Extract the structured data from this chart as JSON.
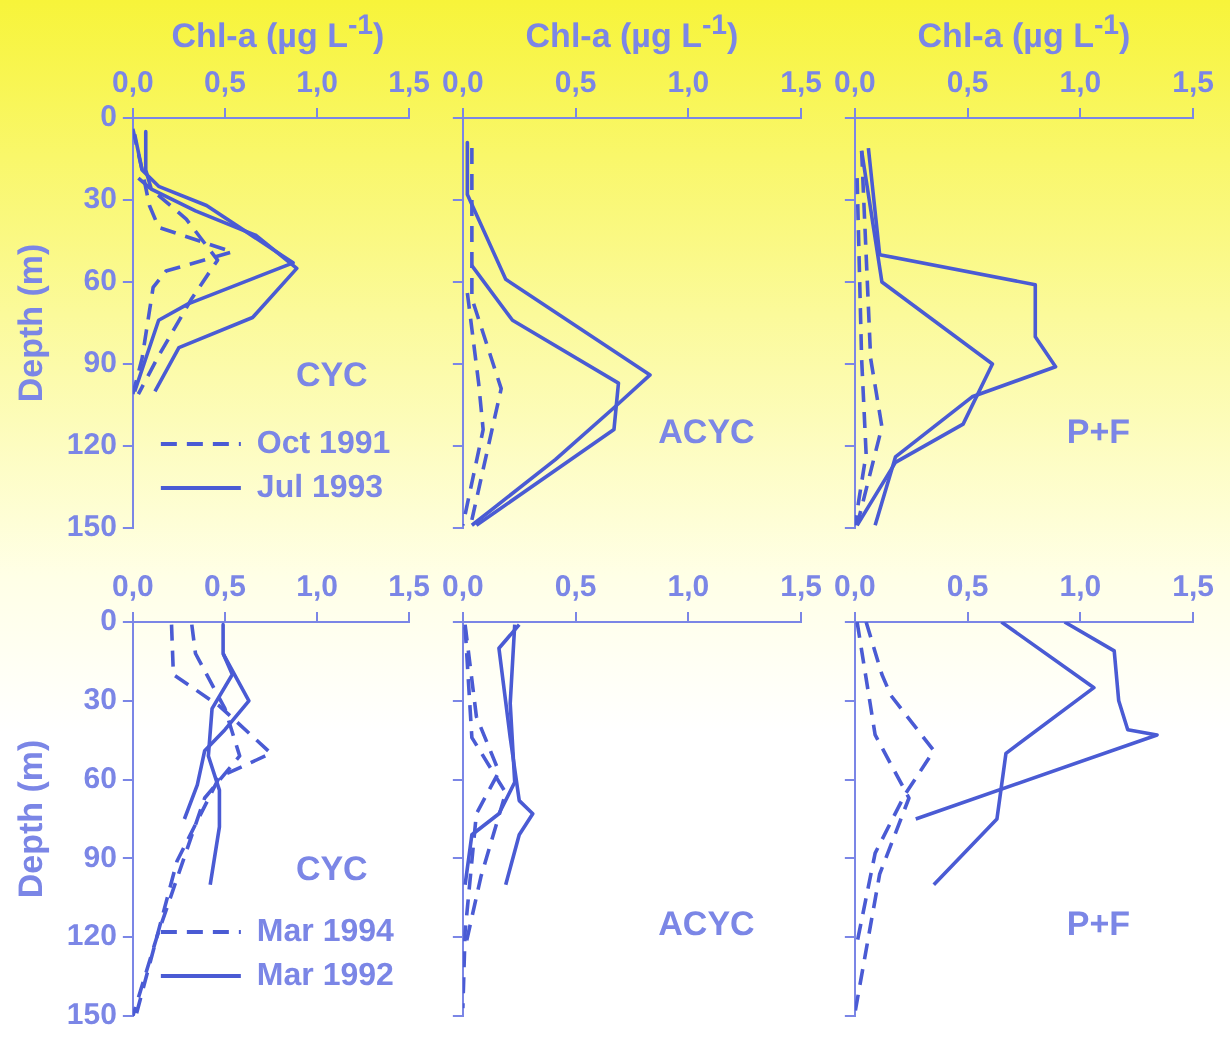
{
  "chart_data": [
    {
      "type": "line",
      "orientation": "horizontal",
      "xlabel": "Chl-a (µg L$^{-1}$)",
      "ylabel": "Depth (m)",
      "xlim": [
        0,
        1.5
      ],
      "xticks": [
        {
          "value": 0,
          "label": "0,0"
        },
        {
          "value": 0.5,
          "label": "0,5"
        },
        {
          "value": 1,
          "label": "1,0"
        },
        {
          "value": 1.5,
          "label": "1,5"
        }
      ],
      "ylim": [
        150,
        0
      ],
      "yticks": [
        0,
        30,
        60,
        90,
        120,
        150
      ],
      "annotations": [
        "CYC"
      ],
      "legend": "bottom",
      "series": [
        {
          "name": "Oct 1991",
          "color": "#4a5bd4",
          "line_style": "dashed",
          "values": [
            0,
            0.05,
            0.09,
            0.14,
            0.54,
            0.18,
            0.11,
            0.05,
            0
          ],
          "x": [
            4,
            19,
            32,
            40,
            49,
            56,
            62,
            88,
            101
          ]
        },
        {
          "color": "#4a5bd4",
          "line_style": "dashed",
          "values": [
            0.03,
            0.29,
            0.46,
            0.32,
            0.14,
            0.03
          ],
          "x": [
            22,
            37,
            52,
            66,
            87,
            101
          ]
        },
        {
          "name": "Jul 1993",
          "color": "#4a5bd4",
          "line_style": "solid",
          "values": [
            0.07,
            0.07,
            0.1,
            0.34,
            0.67,
            0.89,
            0.65,
            0.25,
            0.12
          ],
          "x": [
            5,
            19,
            26,
            34,
            43,
            55,
            73,
            84,
            100
          ]
        },
        {
          "color": "#4a5bd4",
          "line_style": "solid",
          "values": [
            0.01,
            0.05,
            0.14,
            0.4,
            0.87,
            0.3,
            0.14,
            0.01
          ],
          "x": [
            6,
            19,
            25,
            32,
            53,
            68,
            74,
            100
          ]
        }
      ]
    },
    {
      "type": "line",
      "orientation": "horizontal",
      "xlabel": "Chl-a (µg L$^{-1}$)",
      "xlim": [
        0,
        1.5
      ],
      "xticks": [
        {
          "value": 0,
          "label": "0,0"
        },
        {
          "value": 0.5,
          "label": "0,5"
        },
        {
          "value": 1,
          "label": "1,0"
        },
        {
          "value": 1.5,
          "label": "1,5"
        }
      ],
      "ylim": [
        150,
        0
      ],
      "yticks": [
        0,
        30,
        60,
        90,
        120,
        150
      ],
      "tick_labels": "x",
      "annotations": [
        "ACYC"
      ],
      "series": [
        {
          "color": "#4a5bd4",
          "line_style": "dashed",
          "values": [
            0.04,
            0.04,
            0.17,
            0.04
          ],
          "x": [
            11,
            66,
            99,
            147
          ]
        },
        {
          "color": "#4a5bd4",
          "line_style": "dashed",
          "values": [
            0.02,
            0.07,
            0.09,
            0
          ],
          "x": [
            64,
            97,
            114,
            149
          ]
        },
        {
          "color": "#4a5bd4",
          "line_style": "solid",
          "values": [
            0.02,
            0.02,
            0.19,
            0.83,
            0.67,
            0.41,
            0.04
          ],
          "x": [
            9,
            28,
            59,
            94,
            106,
            125,
            149
          ]
        },
        {
          "color": "#4a5bd4",
          "line_style": "solid",
          "values": [
            0.04,
            0.22,
            0.69,
            0.67,
            0.06
          ],
          "x": [
            54,
            74,
            97,
            114,
            149
          ]
        }
      ]
    },
    {
      "type": "line",
      "orientation": "horizontal",
      "xlabel": "Chl-a (µg L$^{-1}$)",
      "xlim": [
        0,
        1.5
      ],
      "xticks": [
        {
          "value": 0,
          "label": "0,0"
        },
        {
          "value": 0.5,
          "label": "0,5"
        },
        {
          "value": 1,
          "label": "1,0"
        },
        {
          "value": 1.5,
          "label": "1,5"
        }
      ],
      "ylim": [
        150,
        0
      ],
      "yticks": [
        0,
        30,
        60,
        90,
        120,
        150
      ],
      "tick_labels": "x",
      "annotations": [
        "P+F"
      ],
      "series": [
        {
          "color": "#4a5bd4",
          "line_style": "dashed",
          "values": [
            0.03,
            0.07,
            0.12,
            0.01
          ],
          "x": [
            12,
            88,
            113,
            149
          ]
        },
        {
          "color": "#4a5bd4",
          "line_style": "dashed",
          "values": [
            0.01,
            0.03,
            0.05,
            0
          ],
          "x": [
            22,
            88,
            123,
            149
          ]
        },
        {
          "color": "#4a5bd4",
          "line_style": "solid",
          "values": [
            0.06,
            0.11,
            0.8,
            0.8,
            0.89,
            0.52,
            0.18,
            0.09
          ],
          "x": [
            11,
            50,
            61,
            80,
            91,
            102,
            124,
            149
          ]
        },
        {
          "color": "#4a5bd4",
          "line_style": "solid",
          "values": [
            0.03,
            0.12,
            0.61,
            0.48,
            0.18,
            0.01
          ],
          "x": [
            12,
            60,
            90,
            112,
            126,
            149
          ]
        }
      ]
    },
    {
      "type": "line",
      "orientation": "horizontal",
      "ylabel": "Depth (m)",
      "xlim": [
        0,
        1.5
      ],
      "xticks": [
        {
          "value": 0,
          "label": "0,0"
        },
        {
          "value": 0.5,
          "label": "0,5"
        },
        {
          "value": 1,
          "label": "1,0"
        },
        {
          "value": 1.5,
          "label": "1,5"
        }
      ],
      "ylim": [
        150,
        0
      ],
      "yticks": [
        0,
        30,
        60,
        90,
        120,
        150
      ],
      "annotations": [
        "CYC"
      ],
      "legend": "bottom",
      "series": [
        {
          "name": "Mar 1994",
          "color": "#4a5bd4",
          "line_style": "dashed",
          "values": [
            0.21,
            0.22,
            0.47,
            0.75,
            0.47,
            0.24,
            0.02
          ],
          "x": [
            1,
            20,
            32,
            50,
            59,
            91,
            149
          ]
        },
        {
          "color": "#4a5bd4",
          "line_style": "dashed",
          "values": [
            0.32,
            0.34,
            0.5,
            0.58,
            0.39,
            0.13,
            0
          ],
          "x": [
            1,
            12,
            33,
            51,
            67,
            120,
            150
          ]
        },
        {
          "name": "Mar 1992",
          "color": "#4a5bd4",
          "line_style": "solid",
          "values": [
            0.49,
            0.49,
            0.54,
            0.43,
            0.41,
            0.47,
            0.47,
            0.42
          ],
          "x": [
            1,
            12,
            20,
            33,
            51,
            64,
            78,
            100
          ]
        },
        {
          "color": "#4a5bd4",
          "line_style": "solid",
          "values": [
            0.49,
            0.63,
            0.5,
            0.39,
            0.35,
            0.28
          ],
          "x": [
            12,
            30,
            41,
            49,
            62,
            75
          ]
        }
      ]
    },
    {
      "type": "line",
      "orientation": "horizontal",
      "xlim": [
        0,
        1.5
      ],
      "xticks": [
        {
          "value": 0,
          "label": "0,0"
        },
        {
          "value": 0.5,
          "label": "0,5"
        },
        {
          "value": 1,
          "label": "1,0"
        },
        {
          "value": 1.5,
          "label": "1,5"
        }
      ],
      "ylim": [
        150,
        0
      ],
      "yticks": [
        0,
        30,
        60,
        90,
        120,
        150
      ],
      "tick_labels": "x",
      "annotations": [
        "ACYC"
      ],
      "series": [
        {
          "color": "#4a5bd4",
          "line_style": "dashed",
          "values": [
            0.01,
            0.06,
            0.16,
            0.06,
            0.01,
            0
          ],
          "x": [
            1,
            36,
            57,
            73,
            118,
            147
          ]
        },
        {
          "color": "#4a5bd4",
          "line_style": "dashed",
          "values": [
            0.01,
            0.04,
            0.19,
            0.08,
            0.01
          ],
          "x": [
            2,
            44,
            65,
            97,
            124
          ]
        },
        {
          "color": "#4a5bd4",
          "line_style": "solid",
          "values": [
            0.25,
            0.16,
            0.21,
            0.25,
            0.31,
            0.25,
            0.19
          ],
          "x": [
            1,
            10,
            44,
            68,
            73,
            81,
            100
          ]
        },
        {
          "color": "#4a5bd4",
          "line_style": "solid",
          "values": [
            0.23,
            0.21,
            0.23,
            0.16,
            0.04,
            0.01
          ],
          "x": [
            1,
            31,
            61,
            73,
            81,
            100
          ]
        }
      ]
    },
    {
      "type": "line",
      "orientation": "horizontal",
      "xlim": [
        0,
        1.5
      ],
      "xticks": [
        {
          "value": 0,
          "label": "0,0"
        },
        {
          "value": 0.5,
          "label": "0,5"
        },
        {
          "value": 1,
          "label": "1,0"
        },
        {
          "value": 1.5,
          "label": "1,5"
        }
      ],
      "ylim": [
        150,
        0
      ],
      "yticks": [
        0,
        30,
        60,
        90,
        120,
        150
      ],
      "tick_labels": "x",
      "annotations": [
        "P+F"
      ],
      "series": [
        {
          "color": "#4a5bd4",
          "line_style": "dashed",
          "values": [
            0.05,
            0.12,
            0.16,
            0.35,
            0.22,
            0.09,
            0.01
          ],
          "x": [
            0,
            20,
            28,
            49,
            66,
            88,
            122
          ]
        },
        {
          "color": "#4a5bd4",
          "line_style": "dashed",
          "values": [
            0.01,
            0.09,
            0.24,
            0.11,
            0
          ],
          "x": [
            0,
            43,
            67,
            96,
            149
          ]
        },
        {
          "color": "#4a5bd4",
          "line_style": "solid",
          "values": [
            0.65,
            1.06,
            0.67,
            0.63,
            0.35
          ],
          "x": [
            0,
            25,
            50,
            75,
            100
          ]
        },
        {
          "color": "#4a5bd4",
          "line_style": "solid",
          "values": [
            0.93,
            1.15,
            1.17,
            1.21,
            1.34,
            0.27
          ],
          "x": [
            0,
            11,
            30,
            41,
            43,
            75
          ]
        }
      ]
    }
  ]
}
